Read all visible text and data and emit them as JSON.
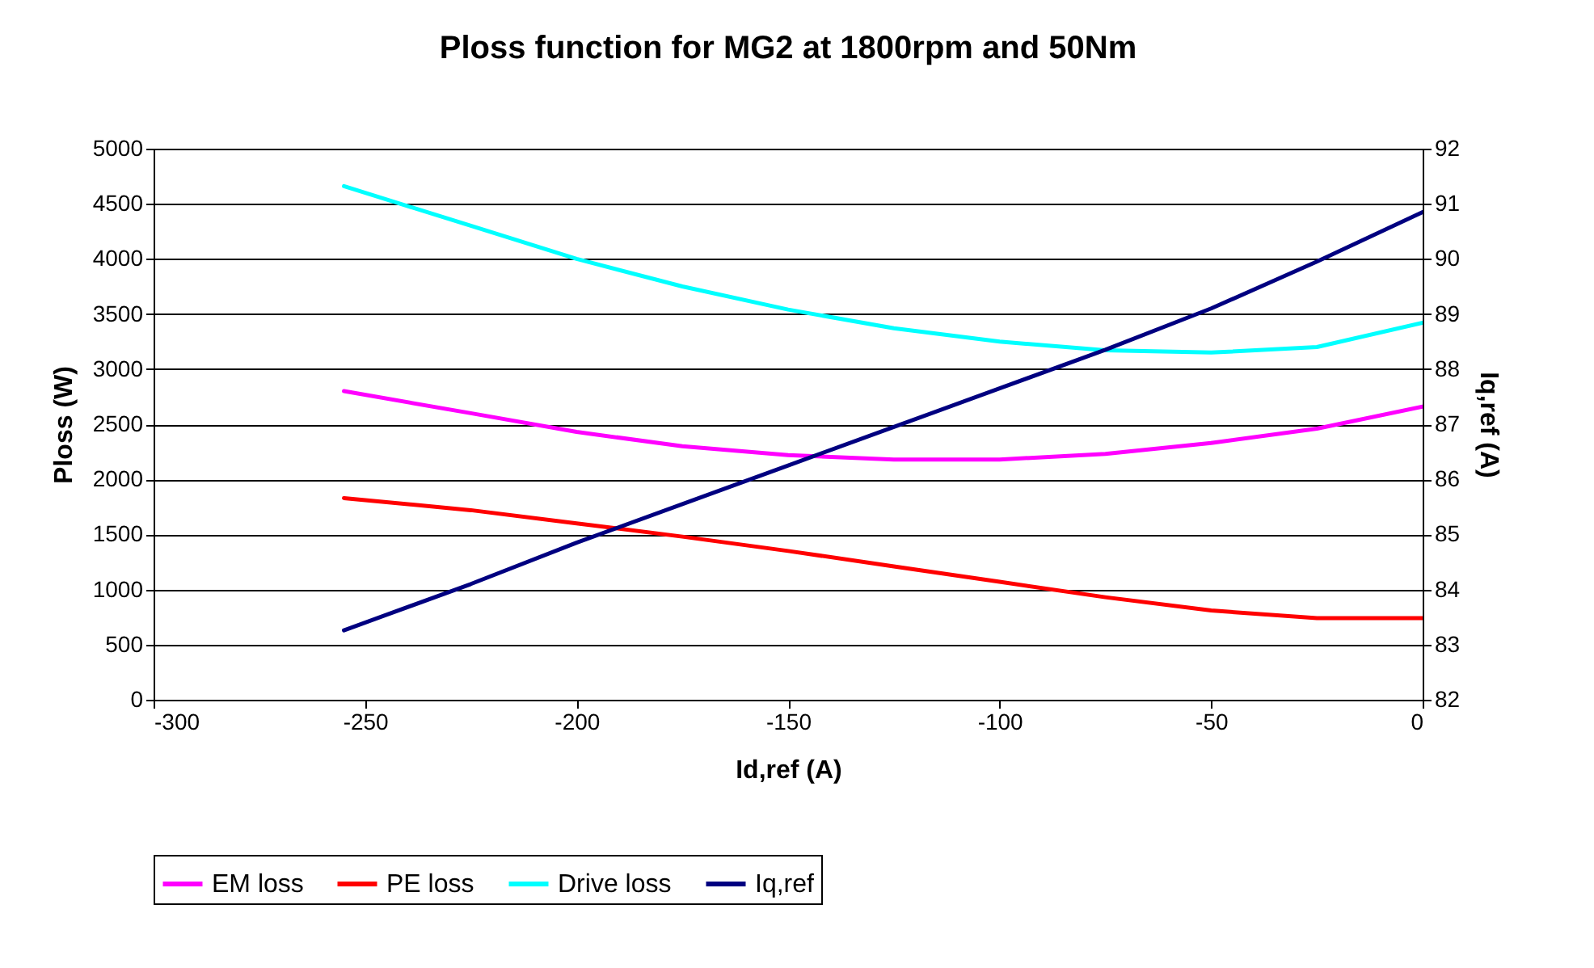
{
  "chart_data": {
    "type": "line",
    "title": "Ploss function for MG2 at 1800rpm and 50Nm",
    "xlabel": "Id,ref (A)",
    "ylabel": "Ploss (W)",
    "y2label": "Iq,ref (A)",
    "x": [
      -255,
      -225,
      -200,
      -175,
      -150,
      -125,
      -100,
      -75,
      -50,
      -25,
      0
    ],
    "series": [
      {
        "name": "EM loss",
        "color": "#ff00ff",
        "values": [
          2800,
          2600,
          2430,
          2300,
          2220,
          2180,
          2180,
          2230,
          2330,
          2460,
          2660
        ]
      },
      {
        "name": "PE loss",
        "color": "#ff0000",
        "values": [
          1830,
          1720,
          1600,
          1480,
          1350,
          1210,
          1070,
          930,
          810,
          740,
          740
        ]
      },
      {
        "name": "Drive loss",
        "color": "#00ffff",
        "values": [
          4660,
          4300,
          4000,
          3750,
          3540,
          3370,
          3250,
          3170,
          3150,
          3200,
          3420
        ]
      },
      {
        "name": "Iq,ref",
        "color": "#000080",
        "axis": "y2",
        "values": [
          83.26,
          84.1,
          84.85,
          85.55,
          86.25,
          86.95,
          87.65,
          88.35,
          89.1,
          89.95,
          90.85
        ]
      }
    ],
    "xlim": [
      -300,
      0
    ],
    "xticks": [
      -300,
      -250,
      -200,
      -150,
      -100,
      -50,
      0
    ],
    "ylim": [
      0,
      5000
    ],
    "yticks": [
      0,
      500,
      1000,
      1500,
      2000,
      2500,
      3000,
      3500,
      4000,
      4500,
      5000
    ],
    "y2lim": [
      82,
      92
    ],
    "y2ticks": [
      82,
      83,
      84,
      85,
      86,
      87,
      88,
      89,
      90,
      91,
      92
    ],
    "grid": "y",
    "legend": "bottom",
    "marker": "none"
  }
}
